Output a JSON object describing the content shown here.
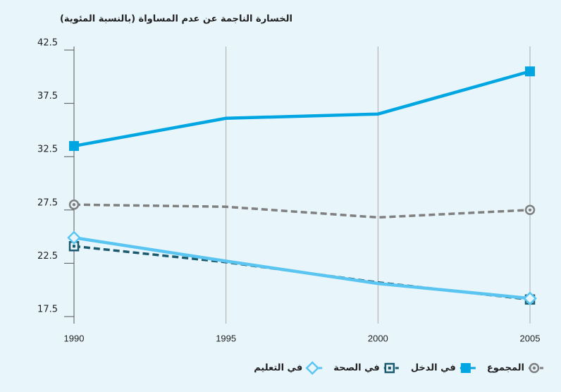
{
  "chart_data": {
    "type": "line",
    "title": "الخسارة الناجمة عن عدم المساواة (بالنسبة المئوية)",
    "x": [
      1990,
      1995,
      2000,
      2005
    ],
    "xlim": [
      1990,
      2005
    ],
    "xticks": [
      1990,
      1995,
      2000,
      2005
    ],
    "ylim": [
      17.5,
      42.5
    ],
    "yticks": [
      17.5,
      22.5,
      27.5,
      32.5,
      37.5,
      42.5
    ],
    "series": [
      {
        "name": "المجموع",
        "color": "#808080",
        "marker": "circle",
        "dashed": true,
        "values": [
          28.0,
          27.8,
          26.8,
          27.5
        ]
      },
      {
        "name": "في الدخل",
        "color": "#00a6e2",
        "marker": "square",
        "dashed": false,
        "values": [
          33.5,
          36.1,
          36.5,
          40.5
        ]
      },
      {
        "name": "في الصحة",
        "color": "#1b5a6e",
        "marker": "square-outline",
        "dashed": true,
        "values": [
          24.1,
          22.6,
          20.7,
          19.1
        ]
      },
      {
        "name": "في التعليم",
        "color": "#5bc5f2",
        "marker": "diamond",
        "dashed": false,
        "values": [
          24.9,
          22.7,
          20.6,
          19.2
        ]
      }
    ]
  }
}
